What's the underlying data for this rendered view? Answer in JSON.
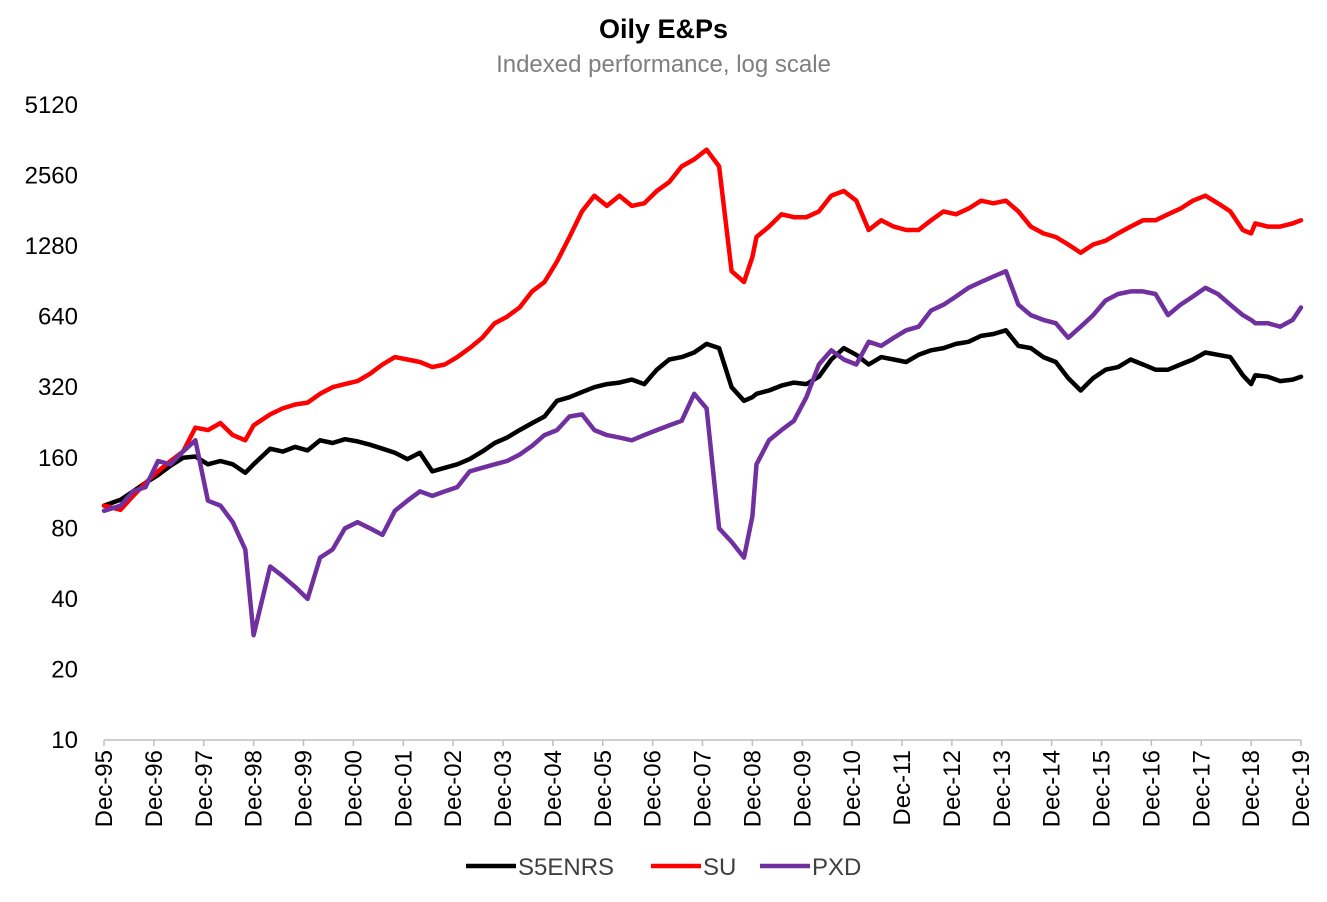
{
  "chart_data": {
    "type": "line",
    "title": "Oily E&Ps",
    "subtitle": "Indexed performance, log scale",
    "yscale": "log2",
    "ylim": [
      10,
      5120
    ],
    "yticks": [
      10,
      20,
      40,
      80,
      160,
      320,
      640,
      1280,
      2560,
      5120
    ],
    "xticks": [
      "Dec-95",
      "Dec-96",
      "Dec-97",
      "Dec-98",
      "Dec-99",
      "Dec-00",
      "Dec-01",
      "Dec-02",
      "Dec-03",
      "Dec-04",
      "Dec-05",
      "Dec-06",
      "Dec-07",
      "Dec-08",
      "Dec-09",
      "Dec-10",
      "Dec-11",
      "Dec-12",
      "Dec-13",
      "Dec-14",
      "Dec-15",
      "Dec-16",
      "Dec-17",
      "Dec-18",
      "Dec-19"
    ],
    "xlim": [
      1995.917,
      2019.917
    ],
    "grid": false,
    "legend": "bottom",
    "series": [
      {
        "name": "S5ENRS",
        "color": "#000000",
        "x": [
          1995.917,
          1996.25,
          1996.5,
          1996.75,
          1997.0,
          1997.25,
          1997.5,
          1997.75,
          1998.0,
          1998.25,
          1998.5,
          1998.75,
          1998.917,
          1999.25,
          1999.5,
          1999.75,
          2000.0,
          2000.25,
          2000.5,
          2000.75,
          2001.0,
          2001.25,
          2001.5,
          2001.75,
          2002.0,
          2002.25,
          2002.5,
          2002.75,
          2003.0,
          2003.25,
          2003.5,
          2003.75,
          2004.0,
          2004.25,
          2004.5,
          2004.75,
          2005.0,
          2005.25,
          2005.5,
          2005.75,
          2006.0,
          2006.25,
          2006.5,
          2006.75,
          2007.0,
          2007.25,
          2007.5,
          2007.75,
          2008.0,
          2008.25,
          2008.5,
          2008.75,
          2008.917,
          2009.0,
          2009.25,
          2009.5,
          2009.75,
          2010.0,
          2010.25,
          2010.5,
          2010.75,
          2011.0,
          2011.25,
          2011.5,
          2011.75,
          2012.0,
          2012.25,
          2012.5,
          2012.75,
          2013.0,
          2013.25,
          2013.5,
          2013.75,
          2014.0,
          2014.25,
          2014.5,
          2014.75,
          2015.0,
          2015.25,
          2015.5,
          2015.75,
          2016.0,
          2016.25,
          2016.5,
          2016.75,
          2017.0,
          2017.25,
          2017.5,
          2017.75,
          2018.0,
          2018.25,
          2018.5,
          2018.75,
          2018.917,
          2019.0,
          2019.25,
          2019.5,
          2019.75,
          2019.917
        ],
        "values": [
          100,
          106,
          115,
          125,
          135,
          148,
          160,
          162,
          150,
          155,
          150,
          138,
          150,
          175,
          170,
          178,
          172,
          190,
          185,
          192,
          188,
          182,
          175,
          168,
          158,
          168,
          140,
          145,
          150,
          158,
          170,
          185,
          195,
          210,
          225,
          240,
          280,
          290,
          305,
          320,
          330,
          335,
          345,
          330,
          380,
          420,
          430,
          450,
          490,
          470,
          320,
          280,
          290,
          300,
          310,
          325,
          335,
          330,
          355,
          420,
          470,
          440,
          400,
          430,
          420,
          410,
          440,
          460,
          470,
          490,
          500,
          530,
          540,
          560,
          480,
          470,
          430,
          410,
          350,
          310,
          350,
          380,
          390,
          420,
          400,
          380,
          380,
          400,
          420,
          450,
          440,
          430,
          360,
          330,
          360,
          355,
          340,
          345,
          355
        ]
      },
      {
        "name": "SU",
        "color": "#ff0000",
        "x": [
          1995.917,
          1996.25,
          1996.5,
          1996.75,
          1997.0,
          1997.25,
          1997.5,
          1997.75,
          1998.0,
          1998.25,
          1998.5,
          1998.75,
          1998.917,
          1999.25,
          1999.5,
          1999.75,
          2000.0,
          2000.25,
          2000.5,
          2000.75,
          2001.0,
          2001.25,
          2001.5,
          2001.75,
          2002.0,
          2002.25,
          2002.5,
          2002.75,
          2003.0,
          2003.25,
          2003.5,
          2003.75,
          2004.0,
          2004.25,
          2004.5,
          2004.75,
          2005.0,
          2005.25,
          2005.5,
          2005.75,
          2006.0,
          2006.25,
          2006.5,
          2006.75,
          2007.0,
          2007.25,
          2007.5,
          2007.75,
          2008.0,
          2008.25,
          2008.5,
          2008.75,
          2008.917,
          2009.0,
          2009.25,
          2009.5,
          2009.75,
          2010.0,
          2010.25,
          2010.5,
          2010.75,
          2011.0,
          2011.25,
          2011.5,
          2011.75,
          2012.0,
          2012.25,
          2012.5,
          2012.75,
          2013.0,
          2013.25,
          2013.5,
          2013.75,
          2014.0,
          2014.25,
          2014.5,
          2014.75,
          2015.0,
          2015.25,
          2015.5,
          2015.75,
          2016.0,
          2016.25,
          2016.5,
          2016.75,
          2017.0,
          2017.25,
          2017.5,
          2017.75,
          2018.0,
          2018.25,
          2018.5,
          2018.75,
          2018.917,
          2019.0,
          2019.25,
          2019.5,
          2019.75,
          2019.917
        ],
        "values": [
          100,
          96,
          110,
          125,
          140,
          155,
          170,
          215,
          210,
          225,
          200,
          190,
          220,
          245,
          260,
          270,
          275,
          300,
          320,
          330,
          340,
          365,
          400,
          430,
          420,
          410,
          390,
          400,
          430,
          470,
          520,
          600,
          640,
          700,
          820,
          900,
          1100,
          1400,
          1800,
          2100,
          1900,
          2100,
          1900,
          1950,
          2200,
          2400,
          2800,
          3000,
          3300,
          2800,
          1000,
          900,
          1150,
          1400,
          1550,
          1750,
          1700,
          1700,
          1800,
          2100,
          2200,
          2000,
          1500,
          1650,
          1550,
          1500,
          1500,
          1650,
          1800,
          1750,
          1850,
          2000,
          1950,
          2000,
          1800,
          1550,
          1450,
          1400,
          1300,
          1200,
          1300,
          1350,
          1450,
          1550,
          1650,
          1650,
          1750,
          1850,
          2000,
          2100,
          1950,
          1800,
          1500,
          1450,
          1600,
          1550,
          1550,
          1600,
          1650
        ]
      },
      {
        "name": "PXD",
        "color": "#7030a0",
        "x": [
          1995.917,
          1996.25,
          1996.5,
          1996.75,
          1997.0,
          1997.25,
          1997.5,
          1997.75,
          1998.0,
          1998.25,
          1998.5,
          1998.75,
          1998.917,
          1999.25,
          1999.5,
          1999.75,
          2000.0,
          2000.25,
          2000.5,
          2000.75,
          2001.0,
          2001.25,
          2001.5,
          2001.75,
          2002.0,
          2002.25,
          2002.5,
          2002.75,
          2003.0,
          2003.25,
          2003.5,
          2003.75,
          2004.0,
          2004.25,
          2004.5,
          2004.75,
          2005.0,
          2005.25,
          2005.5,
          2005.75,
          2006.0,
          2006.25,
          2006.5,
          2006.75,
          2007.0,
          2007.25,
          2007.5,
          2007.75,
          2008.0,
          2008.25,
          2008.5,
          2008.75,
          2008.917,
          2009.0,
          2009.25,
          2009.5,
          2009.75,
          2010.0,
          2010.25,
          2010.5,
          2010.75,
          2011.0,
          2011.25,
          2011.5,
          2011.75,
          2012.0,
          2012.25,
          2012.5,
          2012.75,
          2013.0,
          2013.25,
          2013.5,
          2013.75,
          2014.0,
          2014.25,
          2014.5,
          2014.75,
          2015.0,
          2015.25,
          2015.5,
          2015.75,
          2016.0,
          2016.25,
          2016.5,
          2016.75,
          2017.0,
          2017.25,
          2017.5,
          2017.75,
          2018.0,
          2018.25,
          2018.5,
          2018.75,
          2018.917,
          2019.0,
          2019.25,
          2019.5,
          2019.75,
          2019.917
        ],
        "values": [
          95,
          100,
          115,
          120,
          155,
          150,
          170,
          190,
          105,
          100,
          85,
          65,
          28,
          55,
          50,
          45,
          40,
          60,
          65,
          80,
          85,
          80,
          75,
          95,
          105,
          115,
          110,
          115,
          120,
          140,
          145,
          150,
          155,
          165,
          180,
          200,
          210,
          240,
          245,
          210,
          200,
          195,
          190,
          200,
          210,
          220,
          230,
          300,
          260,
          80,
          70,
          60,
          90,
          150,
          190,
          210,
          230,
          290,
          400,
          460,
          420,
          400,
          500,
          480,
          520,
          560,
          580,
          680,
          720,
          780,
          850,
          900,
          950,
          1000,
          720,
          650,
          620,
          600,
          520,
          580,
          650,
          750,
          800,
          820,
          820,
          800,
          650,
          720,
          780,
          850,
          800,
          720,
          650,
          620,
          600,
          600,
          580,
          620,
          700
        ]
      }
    ]
  }
}
